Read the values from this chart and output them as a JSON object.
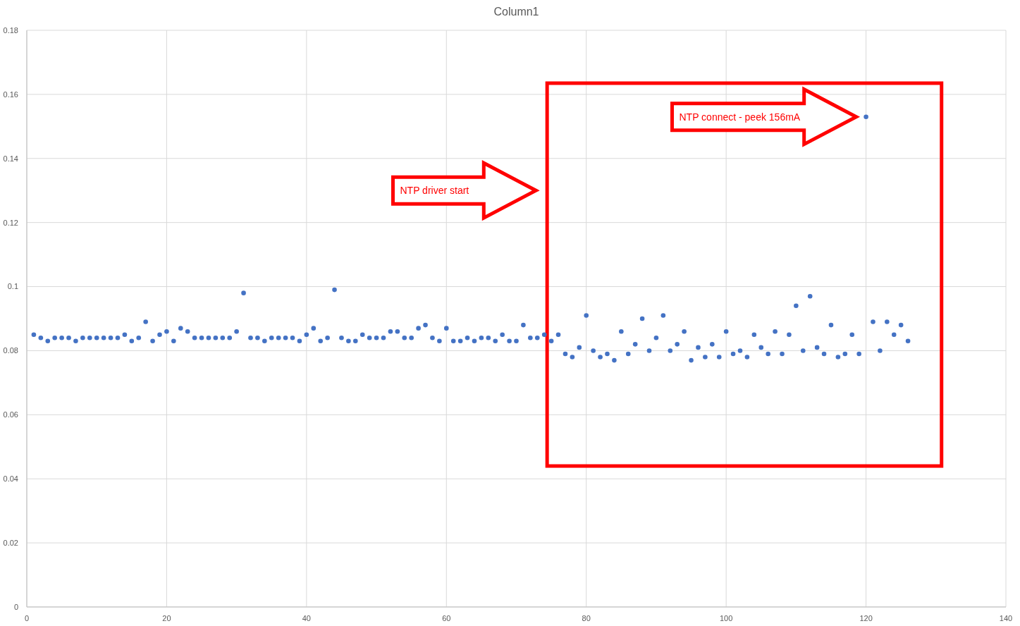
{
  "chart_data": {
    "type": "scatter",
    "title": "Column1",
    "x": [
      1,
      2,
      3,
      4,
      5,
      6,
      7,
      8,
      9,
      10,
      11,
      12,
      13,
      14,
      15,
      16,
      17,
      18,
      19,
      20,
      21,
      22,
      23,
      24,
      25,
      26,
      27,
      28,
      29,
      30,
      31,
      32,
      33,
      34,
      35,
      36,
      37,
      38,
      39,
      40,
      41,
      42,
      43,
      44,
      45,
      46,
      47,
      48,
      49,
      50,
      51,
      52,
      53,
      54,
      55,
      56,
      57,
      58,
      59,
      60,
      61,
      62,
      63,
      64,
      65,
      66,
      67,
      68,
      69,
      70,
      71,
      72,
      73,
      74,
      75,
      76,
      77,
      78,
      79,
      80,
      81,
      82,
      83,
      84,
      85,
      86,
      87,
      88,
      89,
      90,
      91,
      92,
      93,
      94,
      95,
      96,
      97,
      98,
      99,
      100,
      101,
      102,
      103,
      104,
      105,
      106,
      107,
      108,
      109,
      110,
      111,
      112,
      113,
      114,
      115,
      116,
      117,
      118,
      119,
      120,
      121,
      122,
      123,
      124,
      125,
      126
    ],
    "series": [
      {
        "color": "#4472c4",
        "values": [
          0.085,
          0.084,
          0.083,
          0.084,
          0.084,
          0.084,
          0.083,
          0.084,
          0.084,
          0.084,
          0.084,
          0.084,
          0.084,
          0.085,
          0.083,
          0.084,
          0.089,
          0.083,
          0.085,
          0.086,
          0.083,
          0.087,
          0.086,
          0.084,
          0.084,
          0.084,
          0.084,
          0.084,
          0.084,
          0.086,
          0.098,
          0.084,
          0.084,
          0.083,
          0.084,
          0.084,
          0.084,
          0.084,
          0.083,
          0.085,
          0.087,
          0.083,
          0.084,
          0.099,
          0.084,
          0.083,
          0.083,
          0.085,
          0.084,
          0.084,
          0.084,
          0.086,
          0.086,
          0.084,
          0.084,
          0.087,
          0.088,
          0.084,
          0.083,
          0.087,
          0.083,
          0.083,
          0.084,
          0.083,
          0.084,
          0.084,
          0.083,
          0.085,
          0.083,
          0.083,
          0.088,
          0.084,
          0.084,
          0.085,
          0.083,
          0.085,
          0.079,
          0.078,
          0.081,
          0.091,
          0.08,
          0.078,
          0.079,
          0.077,
          0.086,
          0.079,
          0.082,
          0.09,
          0.08,
          0.084,
          0.091,
          0.08,
          0.082,
          0.086,
          0.077,
          0.081,
          0.078,
          0.082,
          0.078,
          0.086,
          0.079,
          0.08,
          0.078,
          0.085,
          0.081,
          0.079,
          0.086,
          0.079,
          0.085,
          0.094,
          0.08,
          0.097,
          0.081,
          0.079,
          0.088,
          0.078,
          0.079,
          0.085,
          0.079,
          0.153,
          0.089,
          0.08,
          0.089,
          0.085,
          0.088,
          0.083
        ]
      }
    ],
    "xlim": [
      0,
      140
    ],
    "xticks": [
      0,
      20,
      40,
      60,
      80,
      100,
      120,
      140
    ],
    "ylim": [
      0,
      0.18
    ],
    "yticks": [
      {
        "value": 0,
        "label": "0"
      },
      {
        "value": 0.02,
        "label": "0.02"
      },
      {
        "value": 0.04,
        "label": "0.04"
      },
      {
        "value": 0.06,
        "label": "0.06"
      },
      {
        "value": 0.08,
        "label": "0.08"
      },
      {
        "value": 0.1,
        "label": "0.1"
      },
      {
        "value": 0.12,
        "label": "0.12"
      },
      {
        "value": 0.14,
        "label": "0.14"
      },
      {
        "value": 0.16,
        "label": "0.16"
      },
      {
        "value": 0.18,
        "label": "0.18"
      }
    ],
    "grid": true,
    "marker": "circle",
    "annotations": [
      "NTP driver start",
      "NTP connect - peek 156mA"
    ]
  }
}
